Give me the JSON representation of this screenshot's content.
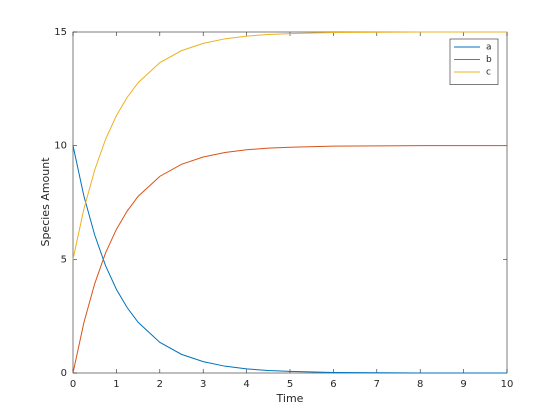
{
  "chart_data": {
    "type": "line",
    "xlabel": "Time",
    "ylabel": "Species Amount",
    "x": [
      0,
      0.25,
      0.5,
      0.75,
      1,
      1.25,
      1.5,
      2,
      2.5,
      3,
      3.5,
      4,
      4.5,
      5,
      6,
      7,
      8,
      9,
      10
    ],
    "series": [
      {
        "name": "a",
        "color": "#0072bd",
        "values": [
          10,
          7.79,
          6.07,
          4.72,
          3.68,
          2.87,
          2.23,
          1.35,
          0.82,
          0.5,
          0.3,
          0.18,
          0.11,
          0.07,
          0.02,
          0.01,
          0,
          0,
          0
        ]
      },
      {
        "name": "b",
        "color": "#d95319",
        "values": [
          0,
          2.21,
          3.93,
          5.28,
          6.32,
          7.13,
          7.77,
          8.65,
          9.18,
          9.5,
          9.7,
          9.82,
          9.89,
          9.93,
          9.98,
          9.99,
          10,
          10,
          10
        ]
      },
      {
        "name": "c",
        "color": "#edb120",
        "values": [
          5,
          7.21,
          8.93,
          10.28,
          11.32,
          12.13,
          12.77,
          13.65,
          14.18,
          14.5,
          14.7,
          14.82,
          14.89,
          14.93,
          14.98,
          14.99,
          15,
          15,
          15
        ]
      }
    ],
    "xlim": [
      0,
      10
    ],
    "xticks": [
      0,
      1,
      2,
      3,
      4,
      5,
      6,
      7,
      8,
      9,
      10
    ],
    "ylim": [
      0,
      15
    ],
    "yticks": [
      0,
      5,
      10,
      15
    ],
    "grid": false,
    "legend": "top-right"
  }
}
